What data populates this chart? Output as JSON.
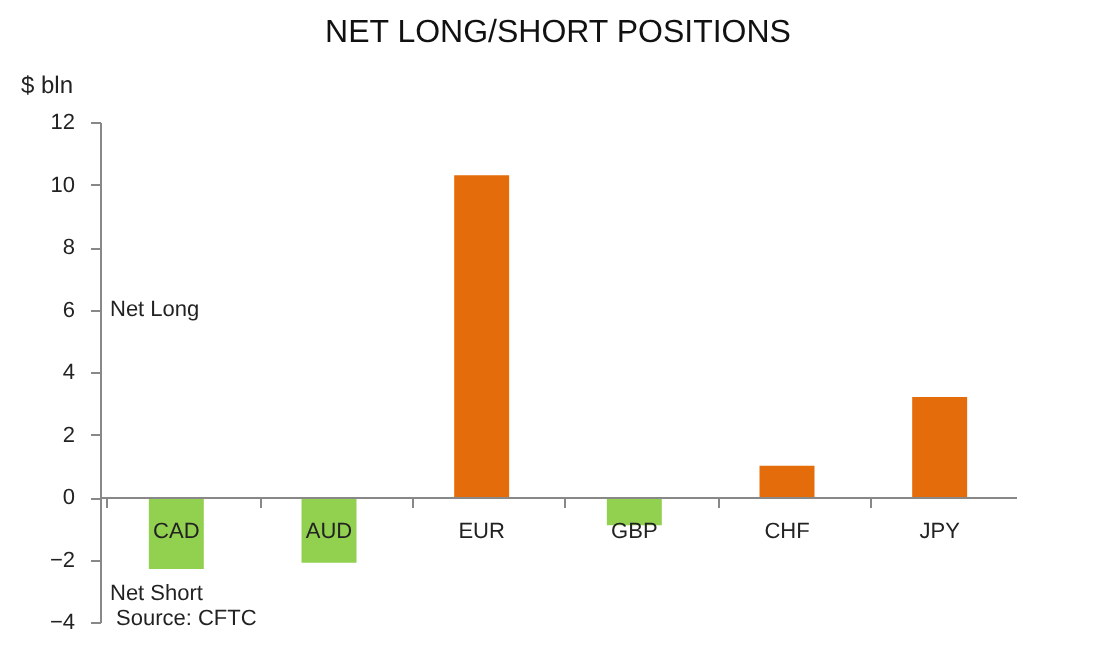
{
  "chart_data": {
    "type": "bar",
    "title": "NET LONG/SHORT POSITIONS",
    "ylabel": "$ bln",
    "categories": [
      "CAD",
      "AUD",
      "EUR",
      "GBP",
      "CHF",
      "JPY"
    ],
    "values": [
      -2.3,
      -2.1,
      10.3,
      -0.9,
      1.0,
      3.2
    ],
    "colors": [
      "#92d050",
      "#92d050",
      "#e46c0a",
      "#92d050",
      "#e46c0a",
      "#e46c0a"
    ],
    "ylim": [
      -4,
      12
    ],
    "yticks": [
      -4,
      -2,
      0,
      2,
      4,
      6,
      8,
      10,
      12
    ],
    "annotations": [
      "Net Long",
      "Net Short",
      "Source: CFTC"
    ],
    "grid": false,
    "legend": false
  }
}
